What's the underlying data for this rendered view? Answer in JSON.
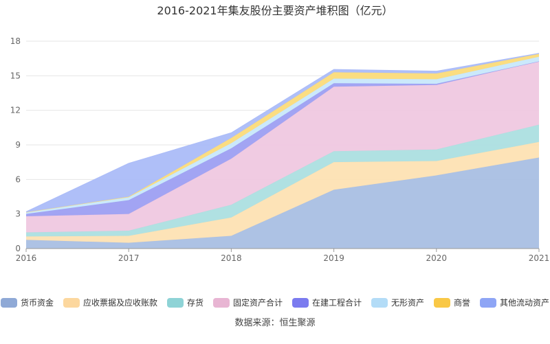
{
  "chart_data": {
    "type": "area",
    "stacked": true,
    "title": "2016-2021年集友股份主要资产堆积图（亿元）",
    "x": [
      "2016",
      "2017",
      "2018",
      "2019",
      "2020",
      "2021"
    ],
    "ylim": [
      0,
      18
    ],
    "yticks": [
      0,
      3,
      6,
      9,
      12,
      15,
      18
    ],
    "grid": true,
    "legend_position": "bottom",
    "series": [
      {
        "name": "货币资金",
        "color": "#a9bfe3",
        "legend_color": "#8fa9d6",
        "values": [
          0.75,
          0.5,
          1.1,
          5.1,
          6.35,
          7.9
        ]
      },
      {
        "name": "应收票据及应收账款",
        "color": "#fde2b3",
        "legend_color": "#fcd79e",
        "values": [
          0.3,
          0.6,
          1.6,
          2.4,
          1.25,
          1.35
        ]
      },
      {
        "name": "存货",
        "color": "#acdfe0",
        "legend_color": "#8ed3d6",
        "values": [
          0.35,
          0.45,
          1.1,
          0.95,
          1.0,
          1.5
        ]
      },
      {
        "name": "固定资产合计",
        "color": "#efc8e0",
        "legend_color": "#e8b5d3",
        "values": [
          1.4,
          1.45,
          4.0,
          5.6,
          5.6,
          5.5
        ]
      },
      {
        "name": "在建工程合计",
        "color": "#9d9ff2",
        "legend_color": "#7b7bef",
        "values": [
          0.2,
          1.2,
          0.9,
          0.3,
          0.1,
          0.0
        ]
      },
      {
        "name": "无形资产",
        "color": "#c8e8fb",
        "legend_color": "#b3dcf7",
        "values": [
          0.15,
          0.25,
          0.45,
          0.4,
          0.4,
          0.4
        ]
      },
      {
        "name": "商誉",
        "color": "#fbdb7a",
        "legend_color": "#f9c846",
        "values": [
          0.0,
          0.05,
          0.45,
          0.55,
          0.5,
          0.25
        ]
      },
      {
        "name": "其他流动资产",
        "color": "#abbcf8",
        "legend_color": "#8ea5f5",
        "values": [
          0.05,
          2.9,
          0.45,
          0.25,
          0.2,
          0.05
        ]
      }
    ]
  },
  "source_note": "数据来源：恒生聚源"
}
